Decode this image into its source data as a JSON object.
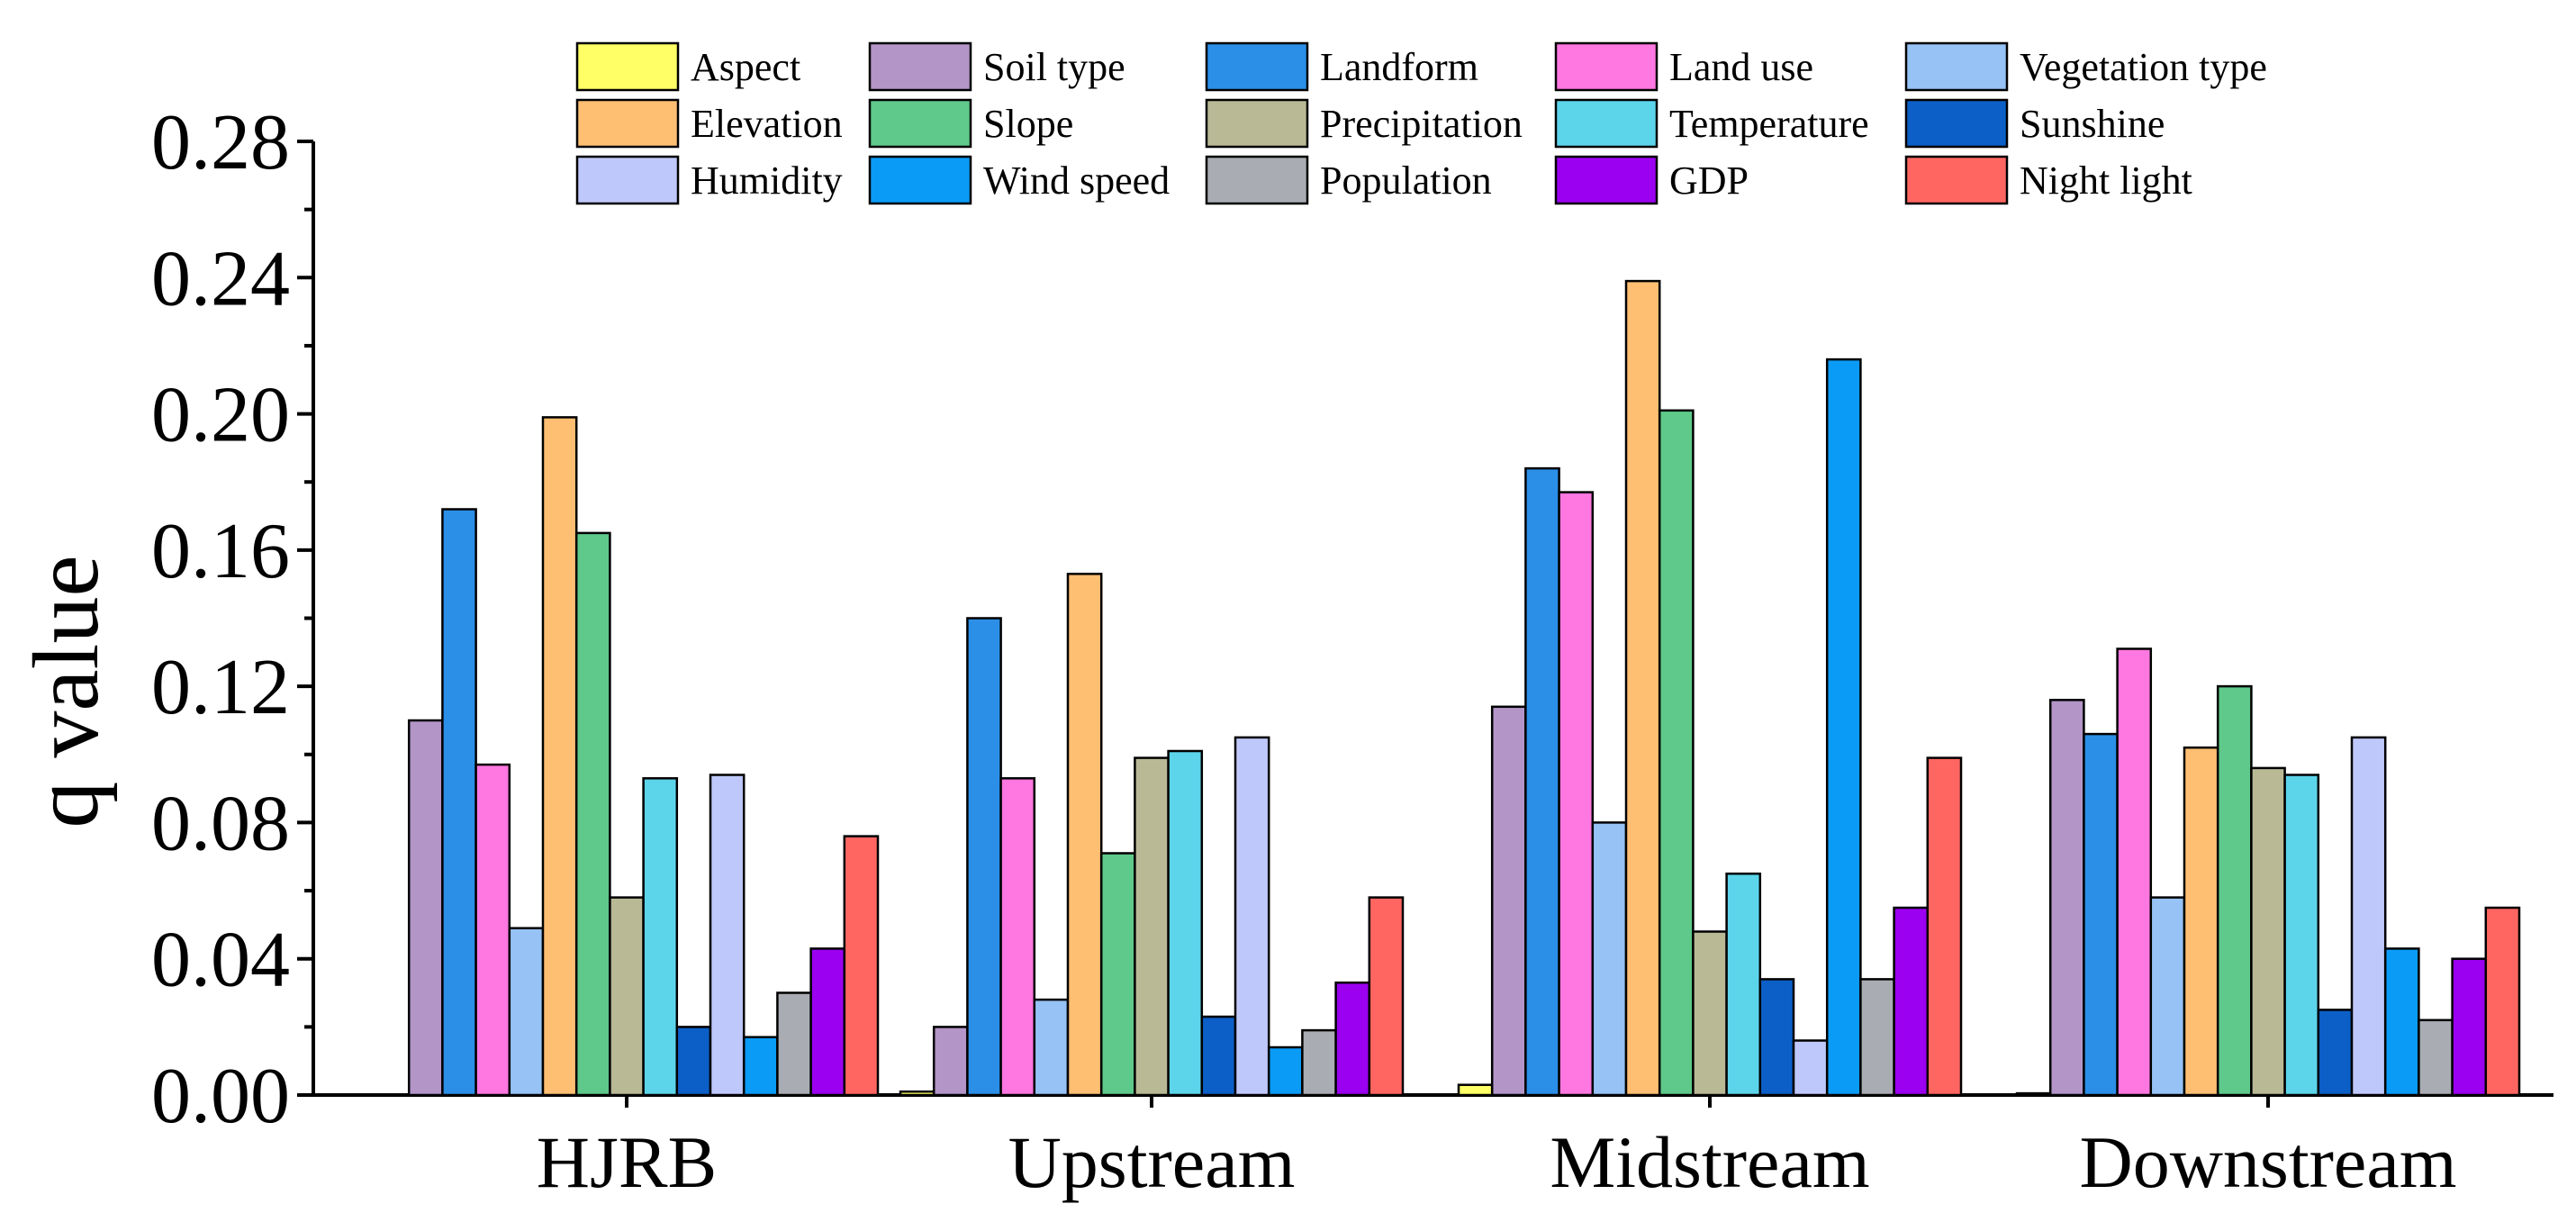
{
  "chart_data": {
    "type": "bar",
    "title": "",
    "xlabel": "",
    "ylabel": "q value",
    "ylim": [
      0,
      0.28
    ],
    "yticks": [
      "0.00",
      "0.04",
      "0.08",
      "0.12",
      "0.16",
      "0.20",
      "0.24",
      "0.28"
    ],
    "grid": false,
    "legend_position": "top",
    "categories": [
      "HJRB",
      "Upstream",
      "Midstream",
      "Downstream"
    ],
    "series": [
      {
        "name": "Aspect",
        "color": "#FFFF66",
        "values": [
          0.0,
          0.001,
          0.003,
          0.0005
        ]
      },
      {
        "name": "Soil type",
        "color": "#B395C8",
        "values": [
          0.11,
          0.02,
          0.114,
          0.116
        ]
      },
      {
        "name": "Landform",
        "color": "#2B8FE8",
        "values": [
          0.172,
          0.14,
          0.184,
          0.106
        ]
      },
      {
        "name": "Land use",
        "color": "#FF77E0",
        "values": [
          0.097,
          0.093,
          0.177,
          0.131
        ]
      },
      {
        "name": "Vegetation type",
        "color": "#96C2F5",
        "values": [
          0.049,
          0.028,
          0.08,
          0.058
        ]
      },
      {
        "name": "Elevation",
        "color": "#FFBF73",
        "values": [
          0.199,
          0.153,
          0.239,
          0.102
        ]
      },
      {
        "name": "Slope",
        "color": "#5EC98A",
        "values": [
          0.165,
          0.071,
          0.201,
          0.12
        ]
      },
      {
        "name": "Precipitation",
        "color": "#B9B996",
        "values": [
          0.058,
          0.099,
          0.048,
          0.096
        ]
      },
      {
        "name": "Temperature",
        "color": "#5CD5EB",
        "values": [
          0.093,
          0.101,
          0.065,
          0.094
        ]
      },
      {
        "name": "Sunshine",
        "color": "#0C5FC7",
        "values": [
          0.02,
          0.023,
          0.034,
          0.025
        ]
      },
      {
        "name": "Humidity",
        "color": "#BFC8FA",
        "values": [
          0.094,
          0.105,
          0.016,
          0.105
        ]
      },
      {
        "name": "Wind speed",
        "color": "#0A9BF7",
        "values": [
          0.017,
          0.014,
          0.216,
          0.043
        ]
      },
      {
        "name": "Population",
        "color": "#A9ADB3",
        "values": [
          0.03,
          0.019,
          0.034,
          0.022
        ]
      },
      {
        "name": "GDP",
        "color": "#9B00F0",
        "values": [
          0.043,
          0.033,
          0.055,
          0.04
        ]
      },
      {
        "name": "Night light",
        "color": "#FF6661",
        "values": [
          0.076,
          0.058,
          0.099,
          0.055
        ]
      }
    ]
  }
}
